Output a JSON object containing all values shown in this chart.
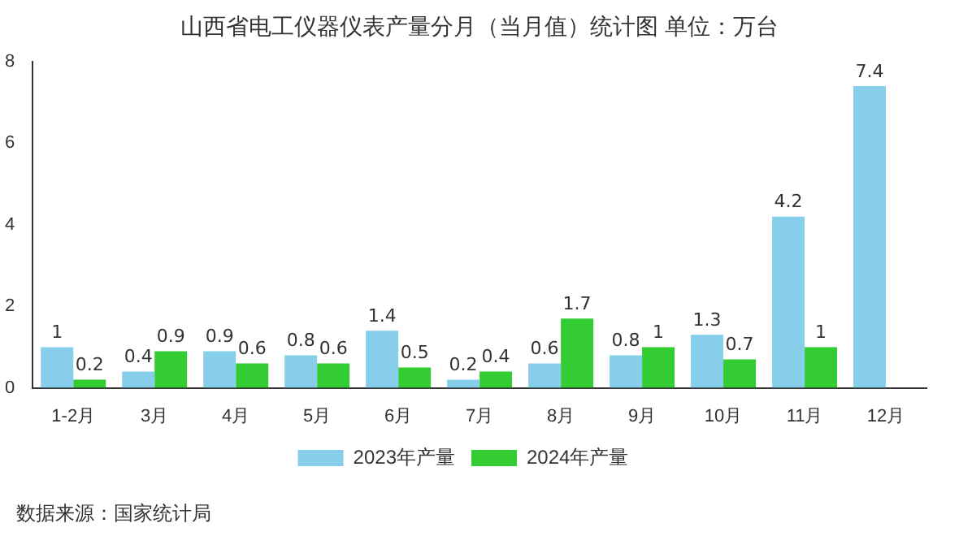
{
  "chart_data": {
    "type": "bar",
    "title": "山西省电工仪器仪表产量分月（当月值）统计图 单位：万台",
    "categories": [
      "1-2月",
      "3月",
      "4月",
      "5月",
      "6月",
      "7月",
      "8月",
      "9月",
      "10月",
      "11月",
      "12月"
    ],
    "series": [
      {
        "name": "2023年产量",
        "color": "#87ceeb",
        "values": [
          1,
          0.4,
          0.9,
          0.8,
          1.4,
          0.2,
          0.6,
          0.8,
          1.3,
          4.2,
          7.4
        ]
      },
      {
        "name": "2024年产量",
        "color": "#33cc33",
        "values": [
          0.2,
          0.9,
          0.6,
          0.6,
          0.5,
          0.4,
          1.7,
          1,
          0.7,
          1,
          null
        ]
      }
    ],
    "ylim": [
      0,
      8
    ],
    "yticks": [
      0,
      2,
      4,
      6,
      8
    ],
    "grid": false,
    "legend": "bottom",
    "data_labels": true,
    "annotations": [
      "数据来源：国家统计局"
    ]
  }
}
